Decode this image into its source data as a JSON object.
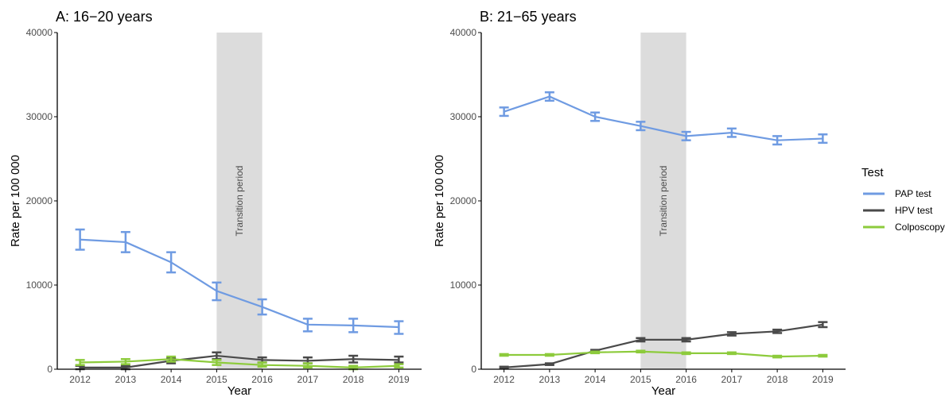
{
  "chart_data": [
    {
      "type": "line",
      "title": "A: 16−20 years",
      "xlabel": "Year",
      "ylabel": "Rate per 100 000",
      "x": [
        2012,
        2013,
        2014,
        2015,
        2016,
        2017,
        2018,
        2019
      ],
      "xlim": [
        2011.5,
        2019.5
      ],
      "ylim": [
        0,
        40000
      ],
      "yticks": [
        "0",
        "10000",
        "20000",
        "30000",
        "40000"
      ],
      "band": {
        "label": "Transition period",
        "from": 2015,
        "to": 2016
      },
      "series": [
        {
          "name": "PAP test",
          "values": [
            15400,
            15100,
            12700,
            9300,
            7400,
            5300,
            5200,
            5000
          ],
          "lower": [
            14200,
            13900,
            11500,
            8200,
            6500,
            4500,
            4400,
            4200
          ],
          "upper": [
            16600,
            16300,
            13900,
            10300,
            8300,
            6000,
            6000,
            5700
          ]
        },
        {
          "name": "HPV test",
          "values": [
            200,
            200,
            1000,
            1600,
            1100,
            1000,
            1200,
            1100
          ],
          "lower": [
            0,
            0,
            700,
            1200,
            800,
            700,
            800,
            800
          ],
          "upper": [
            400,
            400,
            1300,
            2000,
            1400,
            1400,
            1600,
            1500
          ]
        },
        {
          "name": "Colposcopy",
          "values": [
            800,
            900,
            1200,
            800,
            500,
            400,
            200,
            400
          ],
          "lower": [
            500,
            600,
            900,
            500,
            300,
            200,
            0,
            200
          ],
          "upper": [
            1100,
            1200,
            1500,
            1100,
            800,
            700,
            400,
            600
          ]
        }
      ]
    },
    {
      "type": "line",
      "title": "B: 21−65 years",
      "xlabel": "Year",
      "ylabel": "Rate per 100 000",
      "x": [
        2012,
        2013,
        2014,
        2015,
        2016,
        2017,
        2018,
        2019
      ],
      "xlim": [
        2011.5,
        2019.5
      ],
      "ylim": [
        0,
        40000
      ],
      "yticks": [
        "0",
        "10000",
        "20000",
        "30000",
        "40000"
      ],
      "band": {
        "label": "Transition period",
        "from": 2015,
        "to": 2016
      },
      "series": [
        {
          "name": "PAP test",
          "values": [
            30600,
            32400,
            30000,
            28900,
            27700,
            28100,
            27200,
            27400
          ],
          "lower": [
            30100,
            31900,
            29500,
            28400,
            27200,
            27600,
            26700,
            26900
          ],
          "upper": [
            31100,
            32900,
            30500,
            29400,
            28200,
            28600,
            27700,
            27900
          ]
        },
        {
          "name": "HPV test",
          "values": [
            200,
            600,
            2200,
            3500,
            3500,
            4200,
            4500,
            5300
          ],
          "lower": [
            100,
            500,
            2100,
            3300,
            3300,
            4000,
            4300,
            5000
          ],
          "upper": [
            300,
            700,
            2300,
            3700,
            3700,
            4400,
            4700,
            5600
          ]
        },
        {
          "name": "Colposcopy",
          "values": [
            1700,
            1700,
            2000,
            2100,
            1900,
            1900,
            1500,
            1600
          ],
          "lower": [
            1600,
            1600,
            1900,
            2000,
            1800,
            1800,
            1400,
            1500
          ],
          "upper": [
            1800,
            1800,
            2100,
            2200,
            2000,
            2000,
            1600,
            1700
          ]
        }
      ]
    }
  ],
  "legend": {
    "title": "Test",
    "position": "right",
    "items": [
      "PAP test",
      "HPV test",
      "Colposcopy"
    ]
  },
  "colors": {
    "PAP test": "#6f9be2",
    "HPV test": "#4a4a4a",
    "Colposcopy": "#8dcb3c",
    "band": "#dcdcdc",
    "axis": "#000000"
  }
}
